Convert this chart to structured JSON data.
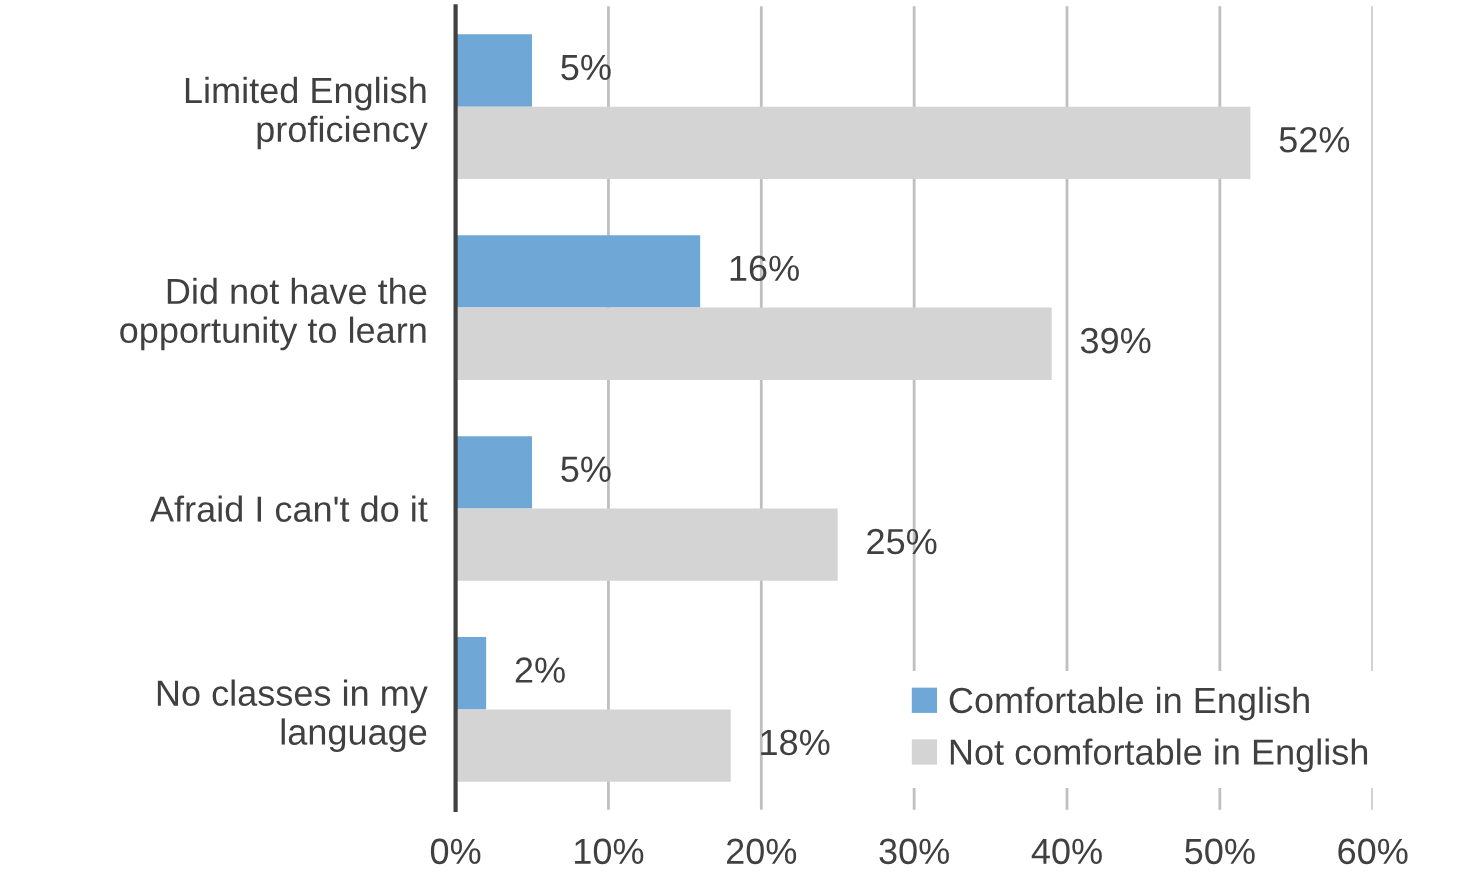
{
  "chart_data": {
    "type": "bar",
    "orientation": "horizontal",
    "categories": [
      "Limited English\nproficiency",
      "Did not have the\nopportunity to learn",
      "Afraid I can't do it",
      "No classes in my\nlanguage"
    ],
    "series": [
      {
        "name": "Comfortable in English",
        "color": "#6fa8d6",
        "values": [
          5,
          16,
          5,
          2
        ],
        "value_labels": [
          "5%",
          "16%",
          "5%",
          "2%"
        ]
      },
      {
        "name": "Not comfortable in English",
        "color": "#d4d4d4",
        "values": [
          52,
          39,
          25,
          18
        ],
        "value_labels": [
          "52%",
          "39%",
          "25%",
          "18%"
        ]
      }
    ],
    "xlim": [
      0,
      60
    ],
    "xticks": [
      {
        "value": 0,
        "label": "0%"
      },
      {
        "value": 10,
        "label": "10%"
      },
      {
        "value": 20,
        "label": "20%"
      },
      {
        "value": 30,
        "label": "30%"
      },
      {
        "value": 40,
        "label": "40%"
      },
      {
        "value": 50,
        "label": "50%"
      },
      {
        "value": 60,
        "label": "60%"
      }
    ],
    "grid": "x",
    "legend": "bottom right"
  }
}
